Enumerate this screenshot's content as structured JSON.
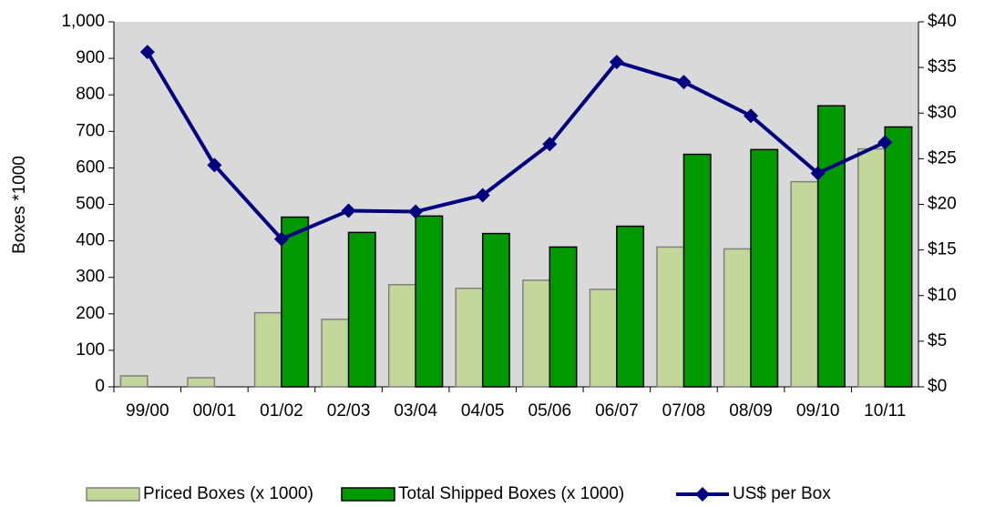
{
  "chart_data": {
    "type": "bar",
    "y_label": "Boxes *1000",
    "categories": [
      "99/00",
      "00/01",
      "01/02",
      "02/03",
      "03/04",
      "04/05",
      "05/06",
      "06/07",
      "07/08",
      "08/09",
      "09/10",
      "10/11"
    ],
    "series": [
      {
        "name": "Priced Boxes (x 1000)",
        "color": "#c4d79b",
        "values": [
          30,
          25,
          203,
          185,
          280,
          270,
          292,
          267,
          383,
          378,
          562,
          652
        ]
      },
      {
        "name": "Total Shipped Boxes (x 1000)",
        "color": "#009900",
        "values": [
          null,
          null,
          465,
          423,
          468,
          420,
          383,
          440,
          637,
          650,
          770,
          712
        ]
      },
      {
        "name": "US$ per Box",
        "color": "#000080",
        "type": "line",
        "axis": "y2",
        "values": [
          36.7,
          24.3,
          16.2,
          19.3,
          19.2,
          21.0,
          26.6,
          35.6,
          33.4,
          29.7,
          23.4,
          26.8
        ]
      }
    ],
    "ylim": [
      0,
      1000
    ],
    "yticks": [
      0,
      100,
      200,
      300,
      400,
      500,
      600,
      700,
      800,
      900,
      {
        "value": 1000,
        "label": "1,000"
      }
    ],
    "y2lim": [
      0,
      40
    ],
    "y2ticks": [
      {
        "value": 0,
        "label": "$0"
      },
      {
        "value": 5,
        "label": "$5"
      },
      {
        "value": 10,
        "label": "$10"
      },
      {
        "value": 15,
        "label": "$15"
      },
      {
        "value": 20,
        "label": "$20"
      },
      {
        "value": 25,
        "label": "$25"
      },
      {
        "value": 30,
        "label": "$30"
      },
      {
        "value": 35,
        "label": "$35"
      },
      {
        "value": 40,
        "label": "$40"
      }
    ],
    "plot_background": "#d9d9d9",
    "legend": "bottom"
  }
}
